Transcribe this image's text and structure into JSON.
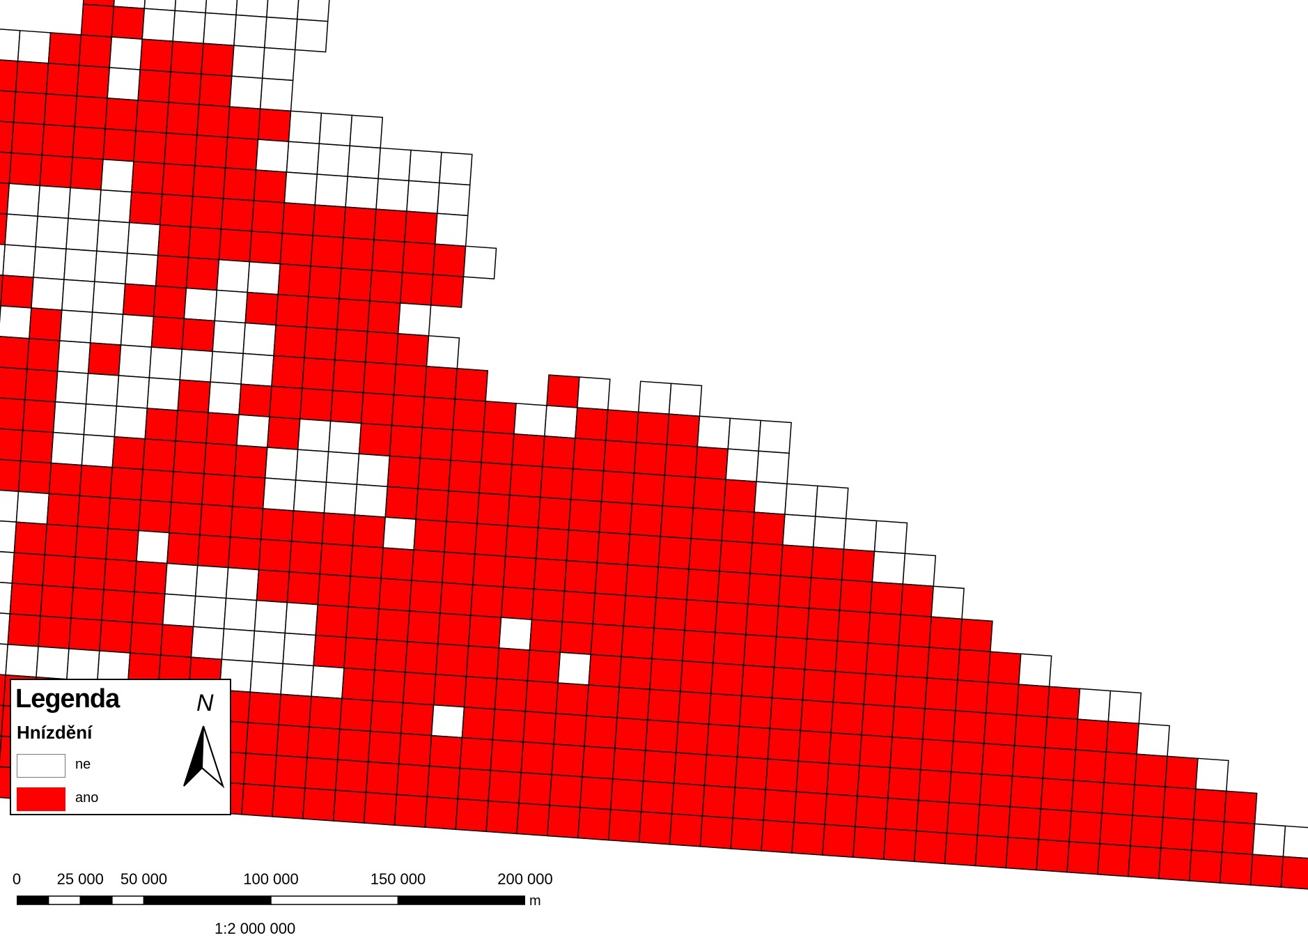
{
  "map": {
    "fill_colors": {
      "ano": "#ff0000",
      "ne": "#ffffff"
    },
    "grid_rows": [
      "....................cooooooo.......",
      "....................cxoooooo.......",
      "...............ooooxxoxxxoo........",
      "..........ooooooxxxxxoxxxoo........",
      ".......ooooooxxxxxxxxxxxxxxooo.....",
      "..oooooooxxxxxoxxxxxxxxxxxooooooo..",
      "..ooooxxxxxoooxoxxxxxoxxxxxoooooo..",
      "..oooxxxxxooooooxxooooxxxxxxxxxxo..",
      "..xxooxxxxoooxoooxoooooxxxxxxxxxxo.",
      "..ooxoxxxxooooxooooooooxxooxxxxxx..",
      "...oxxooxxoxoooooxxoooxxooxxxxxo...",
      "....xxxxoooooooooxoxoooxxooxxxxxo..",
      "....ooxoooxooxoooxxxoxoooooxxxxxxx..xo.oo",
      "....xxooooooxxooooxxooooxoxxxxxxxxxooxxxxooo",
      "....xxxoooooxooxooxxoooxxxoxooxxxxxxxxxxxxoo",
      ".....xxoooooxxooooxxooxxxxxooooxxxxxxxxxxxxooo",
      ".....ooooooxxxooooxxxxxxxxxooooxxxxxxxxxxxxxoooo",
      "......ooooooxxxxooooxxxxxxxxxxxoxxxxxxxxxxxxxxxoo",
      "......oooooxxxxxoxoxxxxoxxxxxxxxxxxxxxxxxxxxxxxxxo",
      ".......ooooooxxxoooxxxxxoooxxxxxxxxxxxxxxxxxxxxxxxx",
      "........xxxxxxxxoooxxxxxoooooxxxxxxoxxxxxxxxxxxxxxxxo",
      ".........xxxxxoxxooxxxxxxooooxxxxxxxxoxxxxxxxxxxxxxxxxoo",
      "..........xxxxooxxoooooxxxooooxxxxxxxxxxxxxxxxxxxxxxxxxxo",
      "...........oxxxxooxxxxxxxxxxxxxxxoxxxxxxxxxxxxxxxxxxxxxxxxo",
      "............oxxxxxxxxxxxxxxxxxxxxxxxxxxxxxxxxxxxxxxxxxxxxxxx",
      "..............xxxxxxxxxxxxxxxxxxxxxxxxxxxxxxxxxxxxxxxxxxxxxxoo",
      "................xxxxxxxxxxxxxxxxxxxxxxxxxxxxxxxxxxxxxxxxxxxxxxxx"
    ]
  },
  "legend": {
    "title": "Legenda",
    "subtitle": "Hnízdění",
    "items": [
      {
        "key": "ne",
        "label": "ne",
        "color": "#ffffff"
      },
      {
        "key": "ano",
        "label": "ano",
        "color": "#ff0000"
      }
    ],
    "north_label": "N"
  },
  "scale": {
    "ticks": [
      "0",
      "25 000",
      "50 000",
      "100 000",
      "150 000",
      "200 000"
    ],
    "tick_values": [
      0,
      25000,
      50000,
      100000,
      150000,
      200000
    ],
    "unit": "m",
    "ratio": "1:2 000 000"
  }
}
